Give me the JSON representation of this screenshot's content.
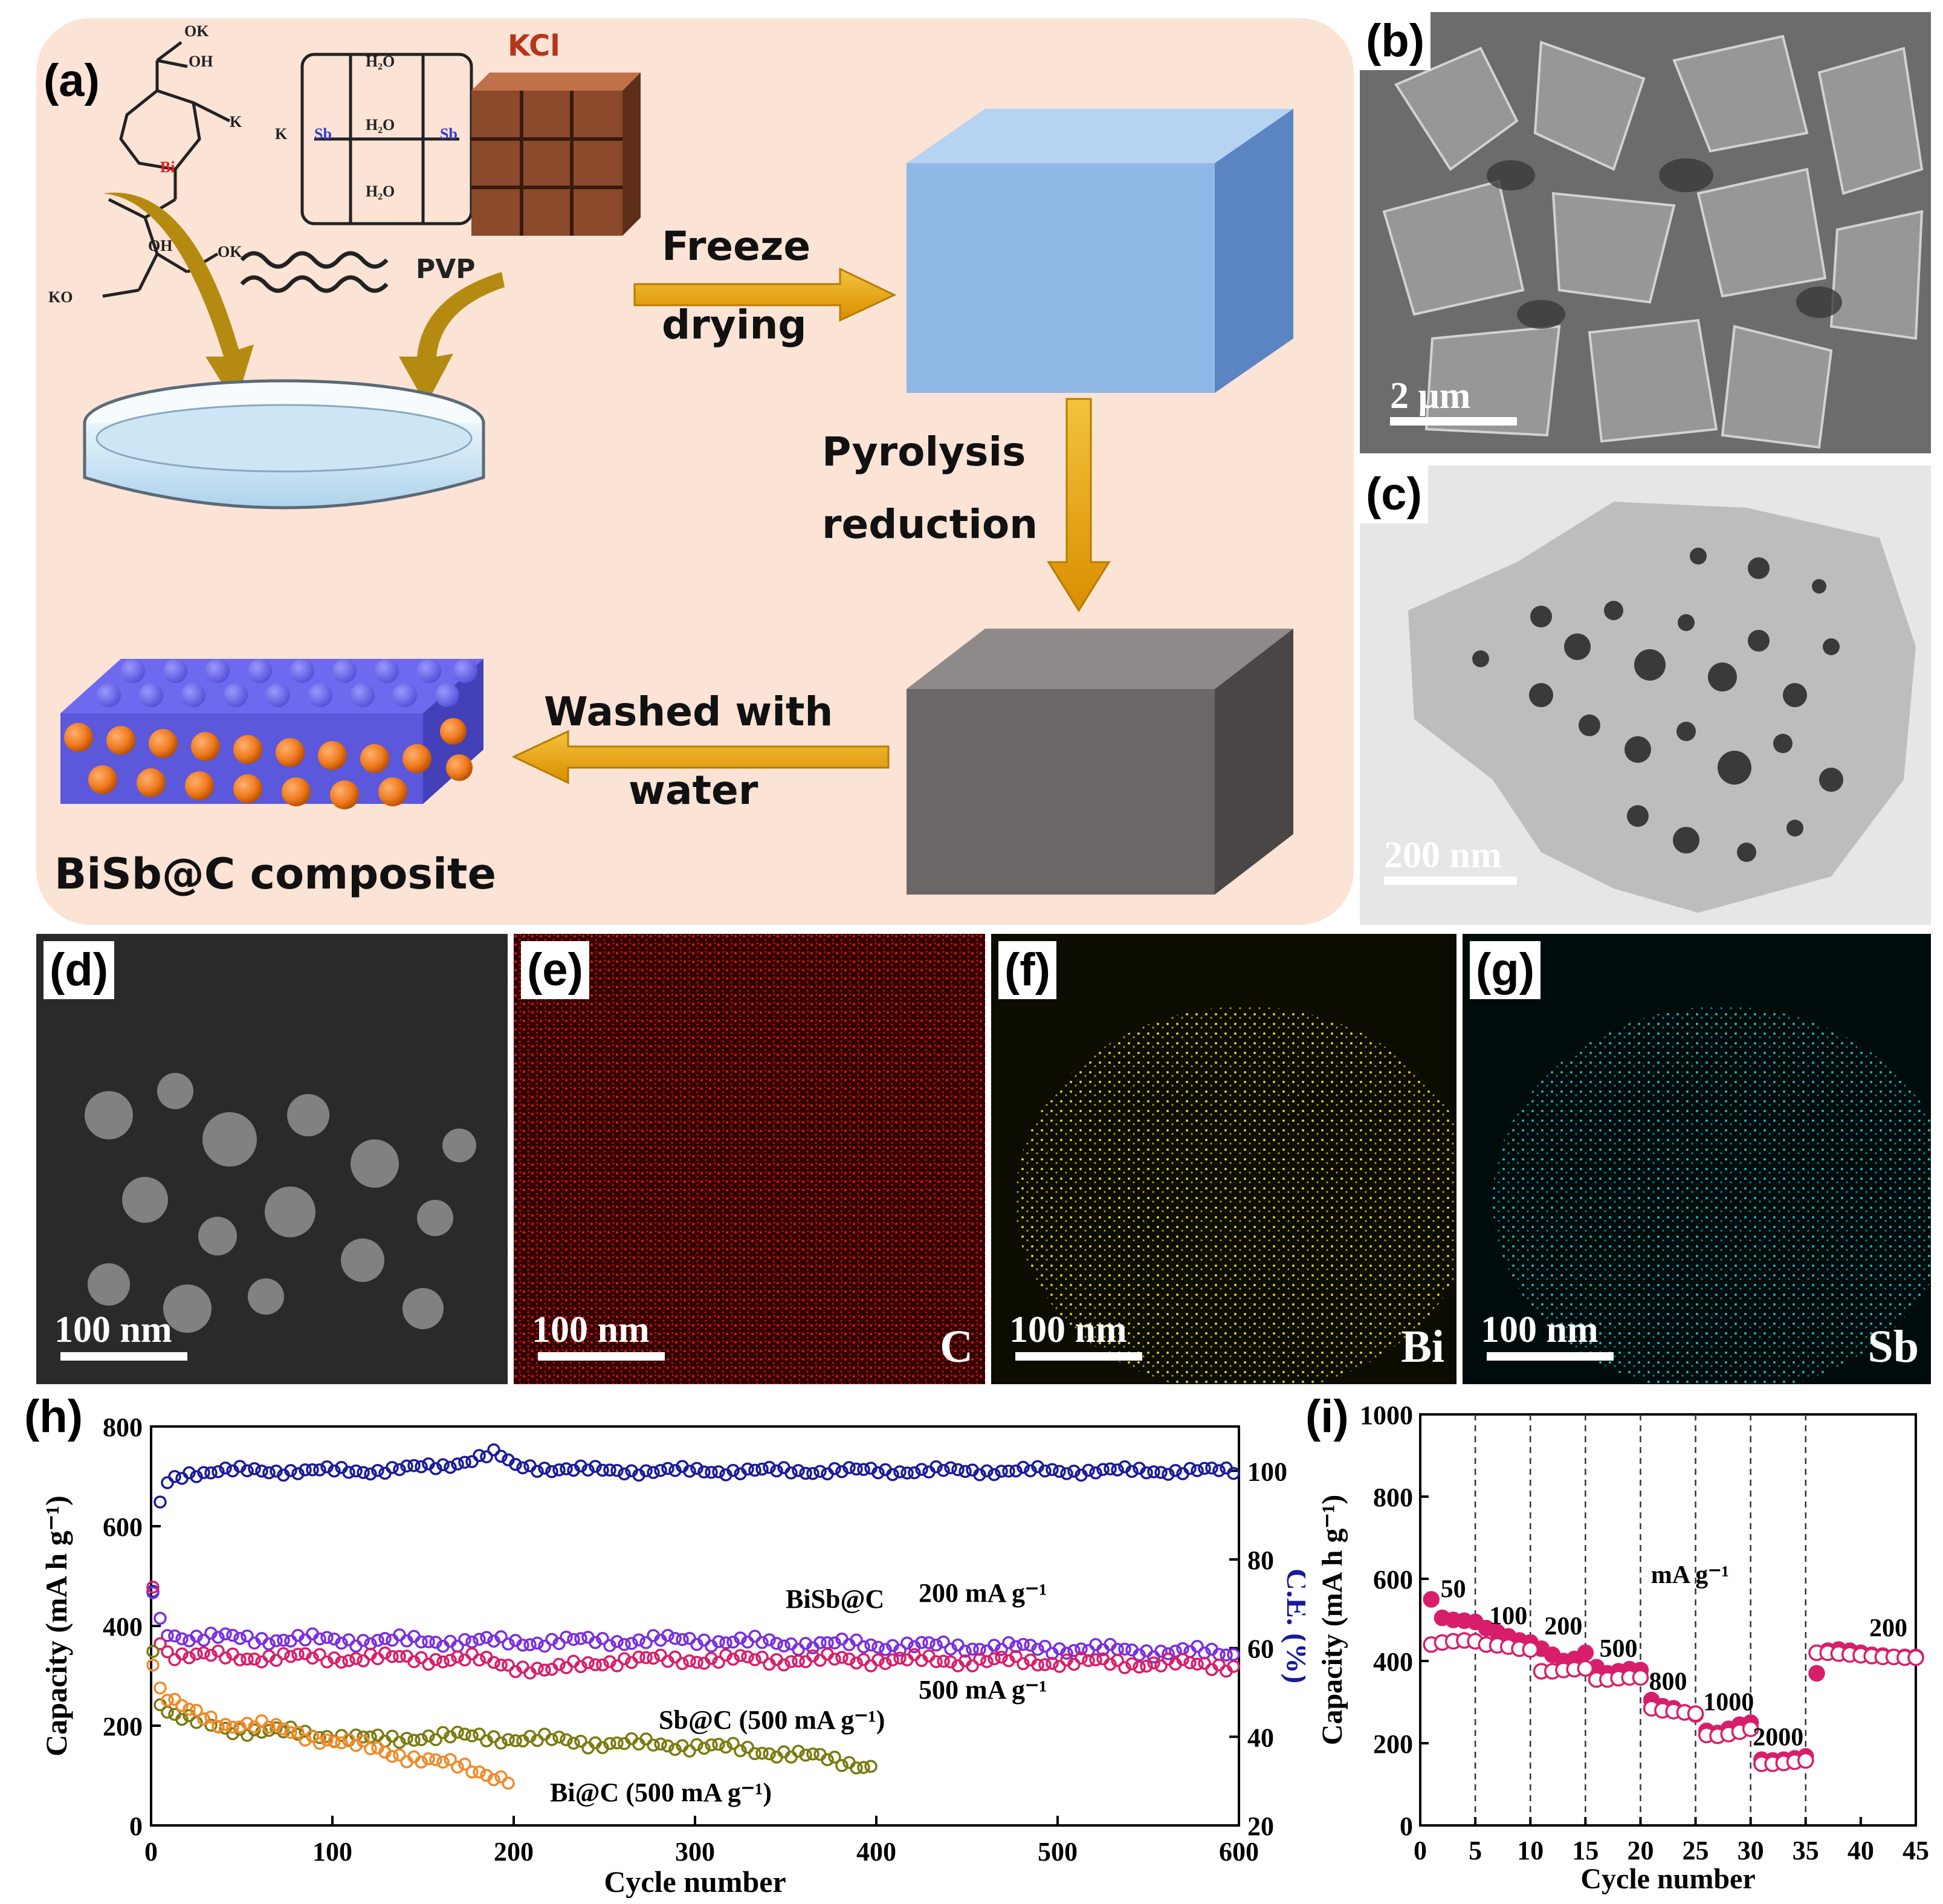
{
  "panels": {
    "a": {
      "label": "(a)",
      "chem": {
        "ok": "OK",
        "oh": "OH",
        "ko": "KO",
        "bi": "Bi",
        "o": "O",
        "k": "K",
        "sb": "Sb",
        "h2o": "H₂O"
      },
      "kcl": "KCl",
      "pvp": "PVP",
      "step1": [
        "Freeze",
        "drying"
      ],
      "step2": [
        "Pyrolysis",
        "reduction"
      ],
      "step3": [
        "Washed with",
        "water"
      ],
      "product": "BiSb@C composite",
      "colors": {
        "background": "#fbe3d5",
        "blue_block": "#8fb8e6",
        "gray_block": "#6b6766",
        "arrow": "#e8a80c",
        "kcl": "#8b4a2b",
        "carbon_sheet": "#6d6af0",
        "particles": "#f07b1e"
      }
    },
    "b": {
      "label": "(b)",
      "scale": "2 μm"
    },
    "c": {
      "label": "(c)",
      "scale": "200 nm"
    },
    "d": {
      "label": "(d)",
      "scale": "100 nm"
    },
    "e": {
      "label": "(e)",
      "scale": "100 nm",
      "element": "C",
      "color": "#e01010"
    },
    "f": {
      "label": "(f)",
      "scale": "100 nm",
      "element": "Bi",
      "color": "#d9d21a"
    },
    "g": {
      "label": "(g)",
      "scale": "100 nm",
      "element": "Sb",
      "color": "#18b8c0"
    }
  },
  "chart_data": [
    {
      "panel": "(h)",
      "type": "scatter",
      "xlabel": "Cycle number",
      "ylabel": "Capacity (mA h g⁻¹)",
      "y2label": "C.E. (%)",
      "xlim": [
        0,
        600
      ],
      "ylim": [
        0,
        800
      ],
      "y2lim": [
        20,
        110
      ],
      "xticks": [
        0,
        100,
        200,
        300,
        400,
        500,
        600
      ],
      "yticks": [
        0,
        200,
        400,
        600,
        800
      ],
      "y2ticks": [
        20,
        40,
        60,
        80,
        100
      ],
      "annotations": [
        "BiSb@C",
        "200 mA g⁻¹",
        "500 mA g⁻¹",
        "Sb@C (500 mA g⁻¹)",
        "Bi@C (500 mA g⁻¹)"
      ],
      "series": [
        {
          "color": "#1a1a9a",
          "axis": "y2",
          "x": [
            1,
            3,
            6,
            10,
            20,
            40,
            80,
            120,
            160,
            190,
            200,
            250,
            300,
            350,
            400,
            450,
            500,
            550,
            600
          ],
          "values": [
            72,
            88,
            95,
            98,
            99.5,
            100,
            100,
            100,
            101,
            104,
            101,
            100,
            100,
            100,
            100,
            100,
            100,
            100,
            100
          ]
        },
        {
          "color": "#7a2ee0",
          "axis": "y",
          "x": [
            1,
            3,
            6,
            10,
            20,
            50,
            100,
            150,
            200,
            250,
            300,
            350,
            400,
            450,
            500,
            550,
            600
          ],
          "values": [
            470,
            430,
            400,
            385,
            378,
            375,
            372,
            370,
            368,
            370,
            372,
            365,
            362,
            358,
            355,
            350,
            345
          ]
        },
        {
          "color": "#d81e6a",
          "axis": "y",
          "x": [
            1,
            3,
            6,
            10,
            20,
            50,
            100,
            150,
            180,
            200,
            220,
            250,
            300,
            350,
            400,
            450,
            500,
            550,
            600
          ],
          "values": [
            480,
            400,
            360,
            345,
            340,
            338,
            336,
            335,
            332,
            320,
            310,
            330,
            333,
            332,
            332,
            330,
            328,
            325,
            320
          ]
        },
        {
          "color": "#7a7a10",
          "axis": "y",
          "x": [
            1,
            5,
            10,
            20,
            40,
            60,
            80,
            100,
            130,
            150,
            200,
            250,
            300,
            350,
            400
          ],
          "values": [
            350,
            250,
            225,
            210,
            195,
            190,
            185,
            180,
            170,
            180,
            175,
            165,
            160,
            145,
            118
          ]
        },
        {
          "color": "#f08a2a",
          "axis": "y",
          "x": [
            1,
            5,
            10,
            20,
            40,
            60,
            80,
            100,
            120,
            140,
            160,
            180,
            200
          ],
          "values": [
            330,
            270,
            250,
            230,
            205,
            200,
            185,
            170,
            155,
            140,
            125,
            110,
            90
          ]
        }
      ]
    },
    {
      "panel": "(i)",
      "type": "scatter",
      "xlabel": "Cycle number",
      "ylabel": "Capacity (mA h g⁻¹)",
      "xlim": [
        0,
        45
      ],
      "ylim": [
        0,
        1000
      ],
      "xticks": [
        0,
        5,
        10,
        15,
        20,
        25,
        30,
        35,
        40,
        45
      ],
      "yticks": [
        0,
        200,
        400,
        600,
        800,
        1000
      ],
      "separators": [
        5,
        10,
        15,
        20,
        25,
        30,
        35
      ],
      "rate_labels": [
        "50",
        "100",
        "200",
        "500",
        "800",
        "1000",
        "2000",
        "200"
      ],
      "unit_label": "mA g⁻¹",
      "series": [
        {
          "color": "#d81e6a",
          "fill": "filled",
          "x": [
            1,
            2,
            3,
            4,
            5,
            6,
            7,
            8,
            9,
            10,
            11,
            12,
            13,
            14,
            15,
            16,
            17,
            18,
            19,
            20,
            21,
            22,
            23,
            24,
            25,
            26,
            27,
            28,
            29,
            30,
            31,
            32,
            33,
            34,
            35,
            36,
            37,
            38,
            39,
            40,
            41,
            42,
            43,
            44,
            45
          ],
          "values": [
            550,
            505,
            500,
            498,
            495,
            480,
            470,
            460,
            450,
            445,
            430,
            415,
            400,
            405,
            420,
            385,
            370,
            375,
            380,
            378,
            305,
            290,
            285,
            275,
            270,
            230,
            225,
            235,
            245,
            250,
            160,
            158,
            160,
            163,
            168,
            370,
            425,
            428,
            425,
            420,
            415,
            413,
            410,
            410,
            410
          ]
        },
        {
          "color": "#d81e6a",
          "fill": "open",
          "x": [
            1,
            2,
            3,
            4,
            5,
            6,
            7,
            8,
            9,
            10,
            11,
            12,
            13,
            14,
            15,
            16,
            17,
            18,
            19,
            20,
            21,
            22,
            23,
            24,
            25,
            26,
            27,
            28,
            29,
            30,
            31,
            32,
            33,
            34,
            35,
            36,
            37,
            38,
            39,
            40,
            41,
            42,
            43,
            44,
            45
          ],
          "values": [
            440,
            445,
            448,
            450,
            448,
            440,
            438,
            435,
            430,
            428,
            375,
            375,
            378,
            380,
            382,
            355,
            355,
            358,
            360,
            360,
            285,
            280,
            278,
            275,
            272,
            220,
            218,
            222,
            228,
            235,
            150,
            150,
            152,
            155,
            158,
            420,
            420,
            418,
            416,
            414,
            412,
            410,
            410,
            408,
            408
          ]
        }
      ]
    }
  ]
}
